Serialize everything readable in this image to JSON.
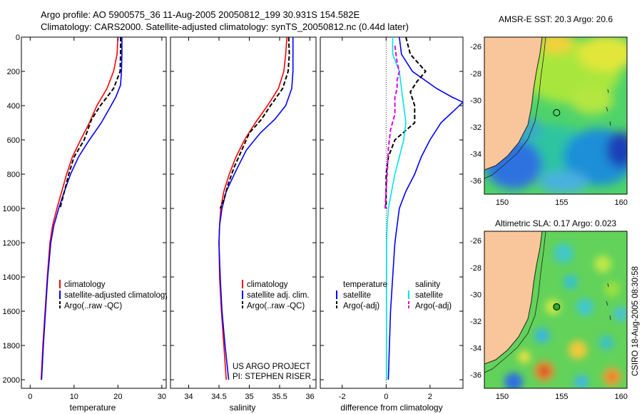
{
  "header": {
    "line1": "Argo profile: AO 5900575_36 11-Aug-2005 20050812_199 30.931S 154.582E",
    "line2": "Climatology: CARS2000. Satellite-adjusted climatology: synTS_20050812.nc (0.44d later)"
  },
  "credit": "CSIRO 18-Aug-2005 08:30:58",
  "project_note": [
    "US ARGO PROJECT",
    "PI: STEPHEN RISER"
  ],
  "colors": {
    "climatology": "#ff0000",
    "satellite": "#0000ff",
    "argo": "#000000",
    "sat_salinity": "#00e5e5",
    "argo_salinity": "#e600e6",
    "land": "#f8c69a"
  },
  "chart_data": [
    {
      "type": "line",
      "id": "temperature",
      "xlabel": "temperature",
      "xlim": [
        -2,
        31
      ],
      "ylim": [
        2050,
        0
      ],
      "xticks": [
        0,
        10,
        20,
        30
      ],
      "yticks": [
        0,
        200,
        400,
        600,
        800,
        1000,
        1200,
        1400,
        1600,
        1800,
        2000
      ],
      "legend": [
        "climatology",
        "satellite-adjusted climatology",
        "Argo(..raw -QC)"
      ],
      "series": [
        {
          "name": "climatology",
          "style": "solid",
          "color": "#ff0000",
          "points": [
            [
              20.0,
              0
            ],
            [
              19.8,
              100
            ],
            [
              19.0,
              200
            ],
            [
              17.5,
              300
            ],
            [
              15.2,
              400
            ],
            [
              13.5,
              500
            ],
            [
              11.5,
              600
            ],
            [
              9.6,
              700
            ],
            [
              8.3,
              800
            ],
            [
              7.2,
              900
            ],
            [
              6.1,
              1000
            ],
            [
              5.1,
              1100
            ],
            [
              4.5,
              1200
            ],
            [
              3.9,
              1400
            ],
            [
              3.4,
              1600
            ],
            [
              2.9,
              1800
            ],
            [
              2.5,
              2000
            ]
          ]
        },
        {
          "name": "satellite-adjusted climatology",
          "style": "solid",
          "color": "#0000ff",
          "points": [
            [
              20.9,
              0
            ],
            [
              20.9,
              100
            ],
            [
              20.8,
              200
            ],
            [
              20.6,
              280
            ],
            [
              19.5,
              350
            ],
            [
              18.0,
              420
            ],
            [
              16.2,
              500
            ],
            [
              13.5,
              600
            ],
            [
              11.0,
              700
            ],
            [
              9.2,
              800
            ],
            [
              7.8,
              900
            ],
            [
              6.5,
              1000
            ],
            [
              5.4,
              1100
            ],
            [
              4.7,
              1200
            ],
            [
              4.0,
              1400
            ],
            [
              3.5,
              1600
            ],
            [
              3.0,
              1800
            ],
            [
              2.6,
              2000
            ]
          ]
        },
        {
          "name": "Argo(..raw -QC)",
          "style": "dashed",
          "color": "#000000",
          "points": [
            [
              20.6,
              0
            ],
            [
              20.6,
              100
            ],
            [
              20.5,
              200
            ],
            [
              19.0,
              300
            ],
            [
              16.0,
              400
            ],
            [
              14.0,
              480
            ],
            [
              12.3,
              600
            ],
            [
              10.0,
              700
            ],
            [
              8.8,
              800
            ],
            [
              7.8,
              900
            ],
            [
              6.8,
              1000
            ]
          ]
        }
      ]
    },
    {
      "type": "line",
      "id": "salinity",
      "xlabel": "salinity",
      "xlim": [
        33.7,
        36.1
      ],
      "ylim": [
        2050,
        0
      ],
      "xticks": [
        34,
        34.5,
        35,
        35.5,
        36
      ],
      "legend": [
        "climatology",
        "satellite adj. clim.",
        "Argo(..raw -QC)"
      ],
      "series": [
        {
          "name": "climatology",
          "style": "solid",
          "color": "#ff0000",
          "points": [
            [
              35.62,
              0
            ],
            [
              35.6,
              100
            ],
            [
              35.57,
              200
            ],
            [
              35.48,
              300
            ],
            [
              35.3,
              400
            ],
            [
              35.1,
              500
            ],
            [
              34.92,
              600
            ],
            [
              34.78,
              700
            ],
            [
              34.67,
              800
            ],
            [
              34.58,
              900
            ],
            [
              34.53,
              1000
            ],
            [
              34.51,
              1100
            ],
            [
              34.5,
              1200
            ],
            [
              34.51,
              1400
            ],
            [
              34.54,
              1600
            ],
            [
              34.58,
              1800
            ],
            [
              34.62,
              2000
            ]
          ]
        },
        {
          "name": "satellite adj. clim.",
          "style": "solid",
          "color": "#0000ff",
          "points": [
            [
              35.72,
              0
            ],
            [
              35.72,
              100
            ],
            [
              35.72,
              200
            ],
            [
              35.7,
              300
            ],
            [
              35.6,
              400
            ],
            [
              35.42,
              480
            ],
            [
              35.18,
              560
            ],
            [
              34.95,
              660
            ],
            [
              34.78,
              780
            ],
            [
              34.62,
              900
            ],
            [
              34.55,
              1000
            ],
            [
              34.51,
              1100
            ],
            [
              34.5,
              1200
            ],
            [
              34.52,
              1400
            ],
            [
              34.55,
              1600
            ],
            [
              34.6,
              1800
            ],
            [
              34.66,
              2000
            ]
          ]
        },
        {
          "name": "Argo(..raw -QC)",
          "style": "dashed",
          "color": "#000000",
          "points": [
            [
              35.65,
              0
            ],
            [
              35.66,
              100
            ],
            [
              35.64,
              200
            ],
            [
              35.55,
              300
            ],
            [
              35.35,
              400
            ],
            [
              35.2,
              480
            ],
            [
              35.0,
              560
            ],
            [
              34.9,
              640
            ],
            [
              34.75,
              760
            ],
            [
              34.65,
              860
            ],
            [
              34.58,
              950
            ],
            [
              34.52,
              1000
            ]
          ]
        }
      ]
    },
    {
      "type": "line",
      "id": "difference",
      "xlabel": "difference from climatology",
      "xlim": [
        -3.0,
        3.5
      ],
      "ylim": [
        2050,
        0
      ],
      "xticks": [
        -2,
        0,
        2
      ],
      "legend_temperature": [
        "temperature",
        "satellite",
        "Argo(-adj)"
      ],
      "legend_salinity": [
        "salinity",
        "satellite",
        "Argo(-adj)"
      ],
      "series": [
        {
          "name": "satellite",
          "group": "temperature",
          "style": "solid",
          "color": "#0000ff",
          "points": [
            [
              0.6,
              0
            ],
            [
              0.7,
              100
            ],
            [
              1.2,
              200
            ],
            [
              2.3,
              300
            ],
            [
              3.0,
              350
            ],
            [
              3.5,
              380
            ],
            [
              2.5,
              500
            ],
            [
              2.0,
              600
            ],
            [
              1.6,
              700
            ],
            [
              1.3,
              800
            ],
            [
              0.9,
              900
            ],
            [
              0.6,
              1000
            ],
            [
              0.5,
              1100
            ],
            [
              0.4,
              1200
            ],
            [
              0.3,
              1400
            ],
            [
              0.2,
              1600
            ],
            [
              0.15,
              1800
            ],
            [
              0.1,
              2000
            ]
          ]
        },
        {
          "name": "Argo(-adj)",
          "group": "temperature",
          "style": "dashed",
          "color": "#000000",
          "points": [
            [
              0.9,
              0
            ],
            [
              1.1,
              100
            ],
            [
              1.8,
              200
            ],
            [
              1.4,
              260
            ],
            [
              1.1,
              320
            ],
            [
              1.3,
              400
            ],
            [
              1.3,
              500
            ],
            [
              0.4,
              600
            ],
            [
              0.1,
              700
            ],
            [
              0.0,
              800
            ],
            [
              0.0,
              900
            ],
            [
              0.0,
              1000
            ]
          ]
        },
        {
          "name": "satellite",
          "group": "salinity",
          "style": "solid",
          "color": "#00e5e5",
          "points": [
            [
              0.3,
              0
            ],
            [
              0.3,
              100
            ],
            [
              0.6,
              200
            ],
            [
              0.7,
              300
            ],
            [
              0.8,
              400
            ],
            [
              0.9,
              500
            ],
            [
              0.8,
              600
            ],
            [
              0.6,
              700
            ],
            [
              0.4,
              800
            ],
            [
              0.25,
              900
            ],
            [
              0.1,
              1000
            ],
            [
              0.05,
              1100
            ],
            [
              0.02,
              1200
            ],
            [
              0.02,
              1400
            ],
            [
              0.02,
              1600
            ],
            [
              0.02,
              1800
            ],
            [
              0.02,
              2000
            ]
          ]
        },
        {
          "name": "Argo(-adj)",
          "group": "salinity",
          "style": "dashed",
          "color": "#e600e6",
          "points": [
            [
              0.4,
              50
            ],
            [
              0.5,
              150
            ],
            [
              0.6,
              200
            ],
            [
              0.5,
              250
            ],
            [
              0.5,
              300
            ],
            [
              0.4,
              350
            ],
            [
              0.4,
              450
            ],
            [
              0.2,
              540
            ],
            [
              0.1,
              650
            ],
            [
              0.05,
              800
            ],
            [
              -0.05,
              1000
            ]
          ]
        }
      ]
    },
    {
      "type": "heatmap",
      "id": "sst-map",
      "title": "AMSR-E SST: 20.3 Argo: 20.6",
      "xlim": [
        148.5,
        160.5
      ],
      "ylim": [
        -37,
        -25.3
      ],
      "xticks": [
        150,
        155,
        160
      ],
      "yticks": [
        -26,
        -28,
        -30,
        -32,
        -34,
        -36
      ],
      "marker": {
        "lon": 154.58,
        "lat": -30.93
      }
    },
    {
      "type": "heatmap",
      "id": "sla-map",
      "title": "Altimetric SLA: 0.17 Argo: 0.023",
      "xlim": [
        148.5,
        160.5
      ],
      "ylim": [
        -37,
        -25.3
      ],
      "xticks": [
        150,
        155,
        160
      ],
      "yticks": [
        -26,
        -28,
        -30,
        -32,
        -34,
        -36
      ],
      "marker": {
        "lon": 154.58,
        "lat": -30.93
      }
    }
  ]
}
